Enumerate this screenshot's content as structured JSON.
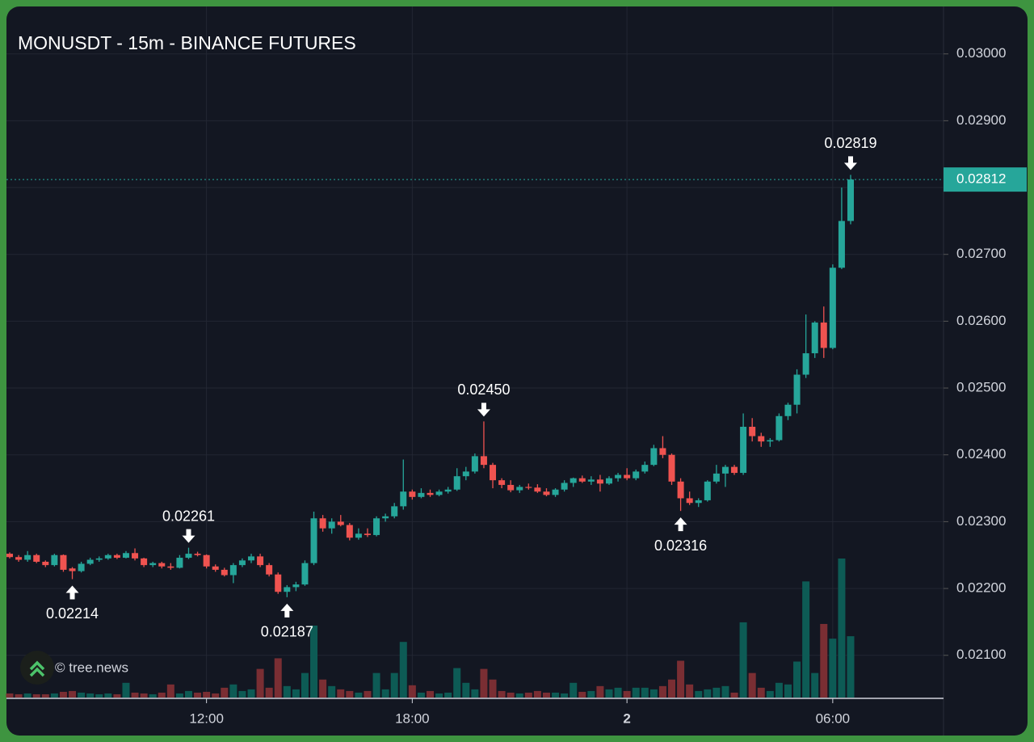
{
  "chart_data": {
    "type": "candlestick",
    "title": "MONUSDT - 15m - BINANCE FUTURES",
    "watermark": "© tree.news",
    "up_color": "#26a69a",
    "down_color": "#ef5350",
    "volume_up_color": "#0d5b55",
    "volume_down_color": "#7a2e33",
    "grid": true,
    "categories": [
      null,
      null,
      null,
      null,
      null,
      null,
      null,
      null,
      null,
      null,
      null,
      null,
      null,
      null,
      null,
      null,
      null,
      null,
      null,
      null,
      null,
      null,
      "12:00",
      null,
      null,
      null,
      null,
      null,
      null,
      null,
      null,
      null,
      null,
      null,
      null,
      null,
      null,
      null,
      null,
      null,
      null,
      null,
      null,
      null,
      null,
      "18:00",
      null,
      null,
      null,
      null,
      null,
      null,
      null,
      null,
      null,
      null,
      null,
      null,
      null,
      null,
      null,
      null,
      null,
      null,
      null,
      null,
      null,
      null,
      null,
      "2",
      null,
      null,
      null,
      null,
      null,
      null,
      null,
      null,
      null,
      null,
      null,
      null,
      null,
      null,
      null,
      null,
      null,
      null,
      null,
      null,
      null,
      null,
      "06:00",
      null,
      null
    ],
    "open": [
      0.02252,
      0.02247,
      0.02243,
      0.0225,
      0.0224,
      0.02235,
      0.0225,
      0.0223,
      0.02226,
      0.02237,
      0.02243,
      0.02245,
      0.0225,
      0.02246,
      0.02253,
      0.02245,
      0.02235,
      0.02238,
      0.02233,
      0.02231,
      0.02246,
      0.02252,
      0.0225,
      0.02233,
      0.02228,
      0.0222,
      0.02235,
      0.02242,
      0.02248,
      0.02235,
      0.02221,
      0.02195,
      0.02202,
      0.02206,
      0.02238,
      0.02305,
      0.0229,
      0.023,
      0.02295,
      0.02276,
      0.02282,
      0.0228,
      0.02305,
      0.02308,
      0.02323,
      0.02345,
      0.02337,
      0.02343,
      0.0234,
      0.02345,
      0.02348,
      0.02368,
      0.02375,
      0.02398,
      0.02385,
      0.02362,
      0.02355,
      0.02347,
      0.02352,
      0.02351,
      0.02345,
      0.0234,
      0.02348,
      0.02358,
      0.02365,
      0.0236,
      0.02363,
      0.02357,
      0.02365,
      0.0237,
      0.02365,
      0.02375,
      0.02385,
      0.0241,
      0.024,
      0.0236,
      0.02335,
      0.02328,
      0.02332,
      0.0236,
      0.02372,
      0.02382,
      0.02373,
      0.02442,
      0.02428,
      0.0242,
      0.02422,
      0.02458,
      0.02475,
      0.0252,
      0.02552,
      0.02598,
      0.0256,
      0.0268,
      0.0275
    ],
    "high": [
      0.02254,
      0.0225,
      0.02256,
      0.02252,
      0.02242,
      0.02252,
      0.02251,
      0.02232,
      0.0224,
      0.02246,
      0.02248,
      0.02252,
      0.02252,
      0.02256,
      0.0226,
      0.02246,
      0.0224,
      0.0224,
      0.02238,
      0.0225,
      0.02261,
      0.02255,
      0.02251,
      0.02236,
      0.02231,
      0.02238,
      0.02245,
      0.02252,
      0.02252,
      0.02238,
      0.02224,
      0.02205,
      0.0221,
      0.02242,
      0.02315,
      0.0231,
      0.02305,
      0.0231,
      0.02298,
      0.0229,
      0.0229,
      0.02308,
      0.02312,
      0.02328,
      0.02393,
      0.02348,
      0.0235,
      0.02348,
      0.02348,
      0.02352,
      0.0238,
      0.02382,
      0.02402,
      0.0245,
      0.02388,
      0.02365,
      0.02362,
      0.02355,
      0.02357,
      0.02356,
      0.0235,
      0.0235,
      0.02362,
      0.02366,
      0.02369,
      0.02368,
      0.0237,
      0.02368,
      0.02373,
      0.0238,
      0.02378,
      0.0239,
      0.02415,
      0.02428,
      0.02402,
      0.02365,
      0.02345,
      0.02335,
      0.02362,
      0.02385,
      0.02385,
      0.02385,
      0.02462,
      0.02455,
      0.02433,
      0.02425,
      0.02462,
      0.02478,
      0.02528,
      0.0261,
      0.026,
      0.02622,
      0.02685,
      0.028,
      0.02819
    ],
    "low": [
      0.02245,
      0.0224,
      0.0224,
      0.02238,
      0.02232,
      0.02233,
      0.02225,
      0.02214,
      0.02224,
      0.02235,
      0.0224,
      0.02243,
      0.02244,
      0.02245,
      0.02242,
      0.02232,
      0.02232,
      0.0223,
      0.02228,
      0.0223,
      0.02244,
      0.02248,
      0.0223,
      0.02225,
      0.02218,
      0.02208,
      0.02232,
      0.02238,
      0.02232,
      0.02218,
      0.02192,
      0.02187,
      0.02196,
      0.02204,
      0.02235,
      0.02285,
      0.02282,
      0.02293,
      0.02272,
      0.02273,
      0.02277,
      0.02278,
      0.023,
      0.02305,
      0.02318,
      0.02333,
      0.02335,
      0.02337,
      0.02338,
      0.02342,
      0.02346,
      0.02362,
      0.02372,
      0.0238,
      0.0235,
      0.0235,
      0.02344,
      0.02343,
      0.02348,
      0.02343,
      0.02338,
      0.02337,
      0.02345,
      0.02352,
      0.02358,
      0.02355,
      0.02345,
      0.02355,
      0.0236,
      0.02362,
      0.02362,
      0.02372,
      0.02383,
      0.02395,
      0.02355,
      0.02316,
      0.02325,
      0.02322,
      0.0233,
      0.02357,
      0.02352,
      0.0237,
      0.0237,
      0.0242,
      0.02412,
      0.02412,
      0.0242,
      0.02452,
      0.02462,
      0.02515,
      0.02545,
      0.02545,
      0.02558,
      0.02678,
      0.02745
    ],
    "close": [
      0.02247,
      0.02243,
      0.0225,
      0.0224,
      0.02235,
      0.0225,
      0.02228,
      0.02226,
      0.02237,
      0.02243,
      0.02245,
      0.0225,
      0.02246,
      0.02253,
      0.02245,
      0.02235,
      0.02238,
      0.02233,
      0.02231,
      0.02246,
      0.02252,
      0.0225,
      0.02233,
      0.02228,
      0.0222,
      0.02235,
      0.02242,
      0.02248,
      0.02235,
      0.02221,
      0.02195,
      0.02202,
      0.02206,
      0.02238,
      0.02305,
      0.0229,
      0.023,
      0.02295,
      0.02276,
      0.02282,
      0.0228,
      0.02305,
      0.02308,
      0.02323,
      0.02345,
      0.02337,
      0.02343,
      0.0234,
      0.02345,
      0.02348,
      0.02368,
      0.02375,
      0.02398,
      0.02385,
      0.02362,
      0.02355,
      0.02347,
      0.02352,
      0.02351,
      0.02345,
      0.0234,
      0.02348,
      0.02358,
      0.02365,
      0.0236,
      0.02363,
      0.02357,
      0.02365,
      0.0237,
      0.02365,
      0.02375,
      0.02385,
      0.0241,
      0.024,
      0.0236,
      0.02335,
      0.02328,
      0.02332,
      0.0236,
      0.02372,
      0.02382,
      0.02373,
      0.02442,
      0.02428,
      0.0242,
      0.02422,
      0.02458,
      0.02475,
      0.0252,
      0.02552,
      0.02598,
      0.0256,
      0.0268,
      0.0275,
      0.02812
    ],
    "volume": [
      5,
      4,
      5,
      4,
      4,
      5,
      7,
      8,
      6,
      5,
      4,
      5,
      4,
      18,
      6,
      5,
      4,
      6,
      16,
      5,
      8,
      6,
      7,
      5,
      12,
      16,
      8,
      10,
      35,
      12,
      48,
      14,
      10,
      30,
      88,
      22,
      14,
      10,
      8,
      6,
      8,
      30,
      10,
      30,
      68,
      15,
      6,
      8,
      5,
      6,
      36,
      18,
      10,
      35,
      22,
      8,
      6,
      5,
      6,
      8,
      6,
      6,
      5,
      18,
      7,
      8,
      14,
      10,
      12,
      8,
      12,
      12,
      10,
      14,
      22,
      45,
      16,
      8,
      10,
      12,
      14,
      6,
      92,
      30,
      12,
      8,
      18,
      16,
      44,
      142,
      30,
      90,
      72,
      170,
      75
    ],
    "ylim": [
      0.02038,
      0.03071
    ],
    "yticks": [
      {
        "value": 0.021,
        "label": "0.02100"
      },
      {
        "value": 0.022,
        "label": "0.02200"
      },
      {
        "value": 0.023,
        "label": "0.02300"
      },
      {
        "value": 0.024,
        "label": "0.02400"
      },
      {
        "value": 0.025,
        "label": "0.02500"
      },
      {
        "value": 0.026,
        "label": "0.02600"
      },
      {
        "value": 0.027,
        "label": "0.02700"
      },
      {
        "value": 0.028,
        "label": "0.02800"
      },
      {
        "value": 0.029,
        "label": "0.02900"
      },
      {
        "value": 0.03,
        "label": "0.03000"
      }
    ],
    "annotations": [
      {
        "text": "0.02214",
        "value": 0.02214,
        "at": "low"
      },
      {
        "text": "0.02261",
        "value": 0.02261,
        "at": "high"
      },
      {
        "text": "0.02187",
        "value": 0.02187,
        "at": "low"
      },
      {
        "text": "0.02450",
        "value": 0.0245,
        "at": "high"
      },
      {
        "text": "0.02316",
        "value": 0.02316,
        "at": "low"
      },
      {
        "text": "0.02819",
        "value": 0.02819,
        "at": "high"
      }
    ],
    "last_price": {
      "value": 0.02812,
      "label": "0.02812"
    }
  }
}
